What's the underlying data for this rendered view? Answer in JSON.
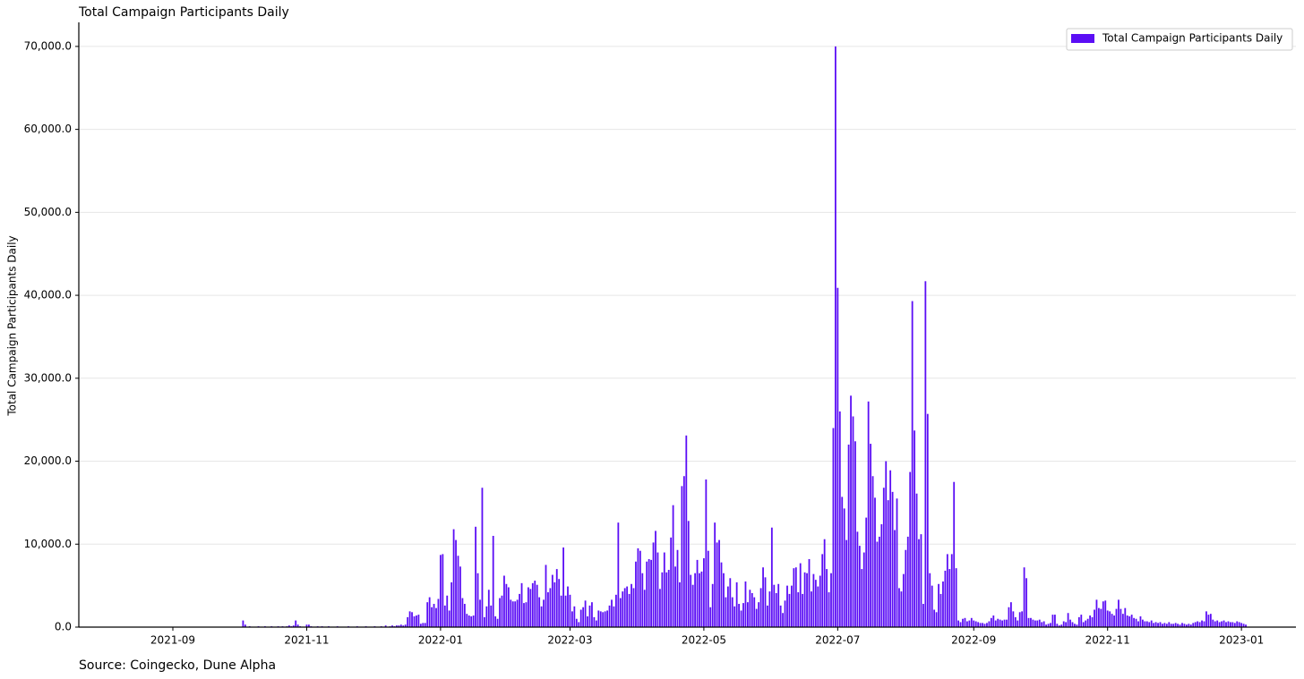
{
  "chart_data": {
    "type": "bar",
    "title": "Total Campaign Participants Daily",
    "y_label": "Total Campaign Participants Daily",
    "source": "Source: Coingecko, Dune Alpha",
    "legend": "upper right",
    "grid": true,
    "ylim": [
      0,
      72900
    ],
    "yticks": [
      {
        "value": 0,
        "label": "0.0"
      },
      {
        "value": 10000,
        "label": "10,000.0"
      },
      {
        "value": 20000,
        "label": "20,000.0"
      },
      {
        "value": 30000,
        "label": "30,000.0"
      },
      {
        "value": 40000,
        "label": "40,000.0"
      },
      {
        "value": 50000,
        "label": "50,000.0"
      },
      {
        "value": 60000,
        "label": "60,000.0"
      },
      {
        "value": 70000,
        "label": "70,000.0"
      }
    ],
    "categories": [
      "2021-09",
      null,
      null,
      null,
      null,
      null,
      null,
      null,
      null,
      null,
      null,
      null,
      null,
      null,
      null,
      null,
      null,
      null,
      null,
      null,
      null,
      null,
      null,
      null,
      null,
      null,
      null,
      null,
      null,
      null,
      null,
      null,
      null,
      null,
      null,
      null,
      null,
      null,
      null,
      null,
      null,
      null,
      null,
      null,
      null,
      null,
      null,
      null,
      null,
      null,
      null,
      null,
      null,
      null,
      null,
      null,
      null,
      null,
      null,
      null,
      null,
      "2021-11",
      null,
      null,
      null,
      null,
      null,
      null,
      null,
      null,
      null,
      null,
      null,
      null,
      null,
      null,
      null,
      null,
      null,
      null,
      null,
      null,
      null,
      null,
      null,
      null,
      null,
      null,
      null,
      null,
      null,
      null,
      null,
      null,
      null,
      null,
      null,
      null,
      null,
      null,
      null,
      null,
      null,
      null,
      null,
      null,
      null,
      null,
      null,
      null,
      null,
      null,
      null,
      null,
      null,
      null,
      null,
      null,
      null,
      null,
      null,
      null,
      "2022-01",
      null,
      null,
      null,
      null,
      null,
      null,
      null,
      null,
      null,
      null,
      null,
      null,
      null,
      null,
      null,
      null,
      null,
      null,
      null,
      null,
      null,
      null,
      null,
      null,
      null,
      null,
      null,
      null,
      null,
      null,
      null,
      null,
      null,
      null,
      null,
      null,
      null,
      null,
      null,
      null,
      null,
      null,
      null,
      null,
      null,
      null,
      null,
      null,
      null,
      null,
      null,
      null,
      null,
      null,
      null,
      null,
      null,
      null,
      "2022-03",
      null,
      null,
      null,
      null,
      null,
      null,
      null,
      null,
      null,
      null,
      null,
      null,
      null,
      null,
      null,
      null,
      null,
      null,
      null,
      null,
      null,
      null,
      null,
      null,
      null,
      null,
      null,
      null,
      null,
      null,
      null,
      null,
      null,
      null,
      null,
      null,
      null,
      null,
      null,
      null,
      null,
      null,
      null,
      null,
      null,
      null,
      null,
      null,
      null,
      null,
      null,
      null,
      null,
      null,
      null,
      null,
      null,
      null,
      null,
      null,
      "2022-05",
      null,
      null,
      null,
      null,
      null,
      null,
      null,
      null,
      null,
      null,
      null,
      null,
      null,
      null,
      null,
      null,
      null,
      null,
      null,
      null,
      null,
      null,
      null,
      null,
      null,
      null,
      null,
      null,
      null,
      null,
      null,
      null,
      null,
      null,
      null,
      null,
      null,
      null,
      null,
      null,
      null,
      null,
      null,
      null,
      null,
      null,
      null,
      null,
      null,
      null,
      null,
      null,
      null,
      null,
      null,
      null,
      null,
      null,
      null,
      null,
      "2022-07",
      null,
      null,
      null,
      null,
      null,
      null,
      null,
      null,
      null,
      null,
      null,
      null,
      null,
      null,
      null,
      null,
      null,
      null,
      null,
      null,
      null,
      null,
      null,
      null,
      null,
      null,
      null,
      null,
      null,
      null,
      null,
      null,
      null,
      null,
      null,
      null,
      null,
      null,
      null,
      null,
      null,
      null,
      null,
      null,
      null,
      null,
      null,
      null,
      null,
      null,
      null,
      null,
      null,
      null,
      null,
      null,
      null,
      null,
      null,
      null,
      null,
      "2022-09",
      null,
      null,
      null,
      null,
      null,
      null,
      null,
      null,
      null,
      null,
      null,
      null,
      null,
      null,
      null,
      null,
      null,
      null,
      null,
      null,
      null,
      null,
      null,
      null,
      null,
      null,
      null,
      null,
      null,
      null,
      null,
      null,
      null,
      null,
      null,
      null,
      null,
      null,
      null,
      null,
      null,
      null,
      null,
      null,
      null,
      null,
      null,
      null,
      null,
      null,
      null,
      null,
      null,
      null,
      null,
      null,
      null,
      null,
      null,
      null,
      "2022-11",
      null,
      null,
      null,
      null,
      null,
      null,
      null,
      null,
      null,
      null,
      null,
      null,
      null,
      null,
      null,
      null,
      null,
      null,
      null,
      null,
      null,
      null,
      null,
      null,
      null,
      null,
      null,
      null,
      null,
      null,
      null,
      null,
      null,
      null,
      null,
      null,
      null,
      null,
      null,
      null,
      null,
      null,
      null,
      null,
      null,
      null,
      null,
      null,
      null,
      null,
      null,
      null,
      null,
      null,
      null,
      null,
      null,
      null,
      null,
      null,
      "2023-01",
      null,
      null
    ],
    "series": [
      {
        "name": "Total Campaign Participants Daily",
        "color": "#5b0ef5",
        "values": [
          null,
          null,
          null,
          null,
          null,
          null,
          null,
          null,
          null,
          null,
          null,
          null,
          null,
          null,
          null,
          null,
          null,
          null,
          null,
          null,
          null,
          null,
          null,
          null,
          null,
          null,
          null,
          null,
          null,
          null,
          null,
          null,
          800,
          300,
          null,
          100,
          null,
          null,
          null,
          100,
          null,
          null,
          100,
          null,
          null,
          100,
          null,
          null,
          100,
          null,
          100,
          null,
          100,
          200,
          100,
          200,
          800,
          300,
          100,
          null,
          null,
          300,
          300,
          100,
          null,
          null,
          100,
          null,
          100,
          null,
          null,
          100,
          null,
          null,
          null,
          100,
          null,
          null,
          null,
          null,
          100,
          null,
          null,
          null,
          100,
          null,
          null,
          null,
          100,
          null,
          null,
          null,
          100,
          null,
          null,
          100,
          null,
          200,
          null,
          100,
          200,
          100,
          200,
          200,
          300,
          200,
          300,
          1200,
          1900,
          1800,
          1300,
          1400,
          1500,
          400,
          500,
          500,
          3000,
          3600,
          2400,
          2800,
          2300,
          3400,
          8700,
          8800,
          2600,
          3800,
          2000,
          5400,
          11800,
          10500,
          8600,
          7300,
          3500,
          2800,
          1600,
          1400,
          1300,
          1400,
          12100,
          6500,
          3300,
          16800,
          1200,
          2500,
          4500,
          2600,
          11000,
          1300,
          1000,
          3500,
          3800,
          6200,
          5200,
          4800,
          3300,
          3100,
          3100,
          3300,
          4000,
          5300,
          2900,
          3000,
          4800,
          4600,
          5300,
          5600,
          5100,
          3600,
          2500,
          3300,
          7500,
          4200,
          4700,
          6300,
          5400,
          7000,
          5800,
          3800,
          9600,
          3800,
          4900,
          3900,
          1900,
          2500,
          1000,
          600,
          2100,
          2400,
          3200,
          1300,
          2600,
          3000,
          1200,
          800,
          2000,
          1900,
          1800,
          1900,
          2000,
          2600,
          3300,
          2500,
          3900,
          12600,
          3500,
          4300,
          4700,
          4900,
          4000,
          5200,
          4700,
          7900,
          9500,
          9200,
          6500,
          4500,
          7900,
          8200,
          8100,
          10200,
          11600,
          9000,
          4600,
          6600,
          9000,
          6600,
          6900,
          10800,
          14700,
          7300,
          9300,
          5400,
          17000,
          18200,
          23100,
          12800,
          6300,
          5100,
          6500,
          8100,
          6500,
          6700,
          8300,
          17800,
          9200,
          2400,
          5200,
          12600,
          10200,
          10500,
          7800,
          6500,
          3600,
          4900,
          5900,
          3600,
          2500,
          5400,
          2800,
          2000,
          2900,
          5500,
          3000,
          4500,
          4100,
          3600,
          2200,
          3000,
          4700,
          7200,
          6000,
          2600,
          4300,
          12000,
          5100,
          4100,
          5200,
          2600,
          1700,
          3200,
          5000,
          4000,
          5000,
          7100,
          7200,
          4200,
          7700,
          4000,
          6600,
          6500,
          8200,
          4300,
          6400,
          5700,
          4900,
          6200,
          8800,
          10600,
          7000,
          4200,
          6500,
          24000,
          70000,
          40900,
          26000,
          15700,
          14300,
          10500,
          22000,
          27900,
          25400,
          22400,
          11500,
          9800,
          7000,
          9000,
          13200,
          27200,
          22100,
          18200,
          15600,
          10300,
          10900,
          12400,
          16800,
          20000,
          15300,
          18900,
          16300,
          11700,
          15500,
          4700,
          4300,
          6400,
          9300,
          10900,
          18700,
          39300,
          23700,
          16100,
          10600,
          11200,
          2800,
          41700,
          25700,
          6500,
          5000,
          2100,
          1800,
          5200,
          4000,
          5500,
          6800,
          8800,
          7000,
          8800,
          17500,
          7100,
          800,
          600,
          1000,
          1100,
          700,
          800,
          1100,
          800,
          700,
          600,
          500,
          500,
          400,
          500,
          700,
          1100,
          1400,
          800,
          1000,
          900,
          800,
          900,
          900,
          2400,
          3000,
          1900,
          1200,
          800,
          1800,
          1900,
          7200,
          5900,
          1100,
          1100,
          900,
          800,
          800,
          900,
          600,
          700,
          300,
          400,
          500,
          1500,
          1500,
          400,
          200,
          300,
          700,
          600,
          1700,
          900,
          600,
          400,
          300,
          1200,
          1500,
          600,
          800,
          1000,
          1400,
          1200,
          2100,
          3300,
          2300,
          2200,
          3100,
          3200,
          2000,
          1900,
          1600,
          1400,
          2200,
          3300,
          2200,
          1600,
          2300,
          1400,
          1300,
          1500,
          1100,
          1000,
          700,
          1300,
          900,
          700,
          700,
          600,
          800,
          500,
          600,
          500,
          600,
          400,
          500,
          400,
          600,
          400,
          400,
          500,
          400,
          300,
          500,
          400,
          300,
          400,
          300,
          500,
          600,
          700,
          600,
          800,
          700,
          1900,
          1500,
          1600,
          900,
          700,
          800,
          600,
          700,
          800,
          600,
          700,
          600,
          600,
          500,
          700,
          600,
          500,
          400,
          300
        ]
      }
    ]
  }
}
